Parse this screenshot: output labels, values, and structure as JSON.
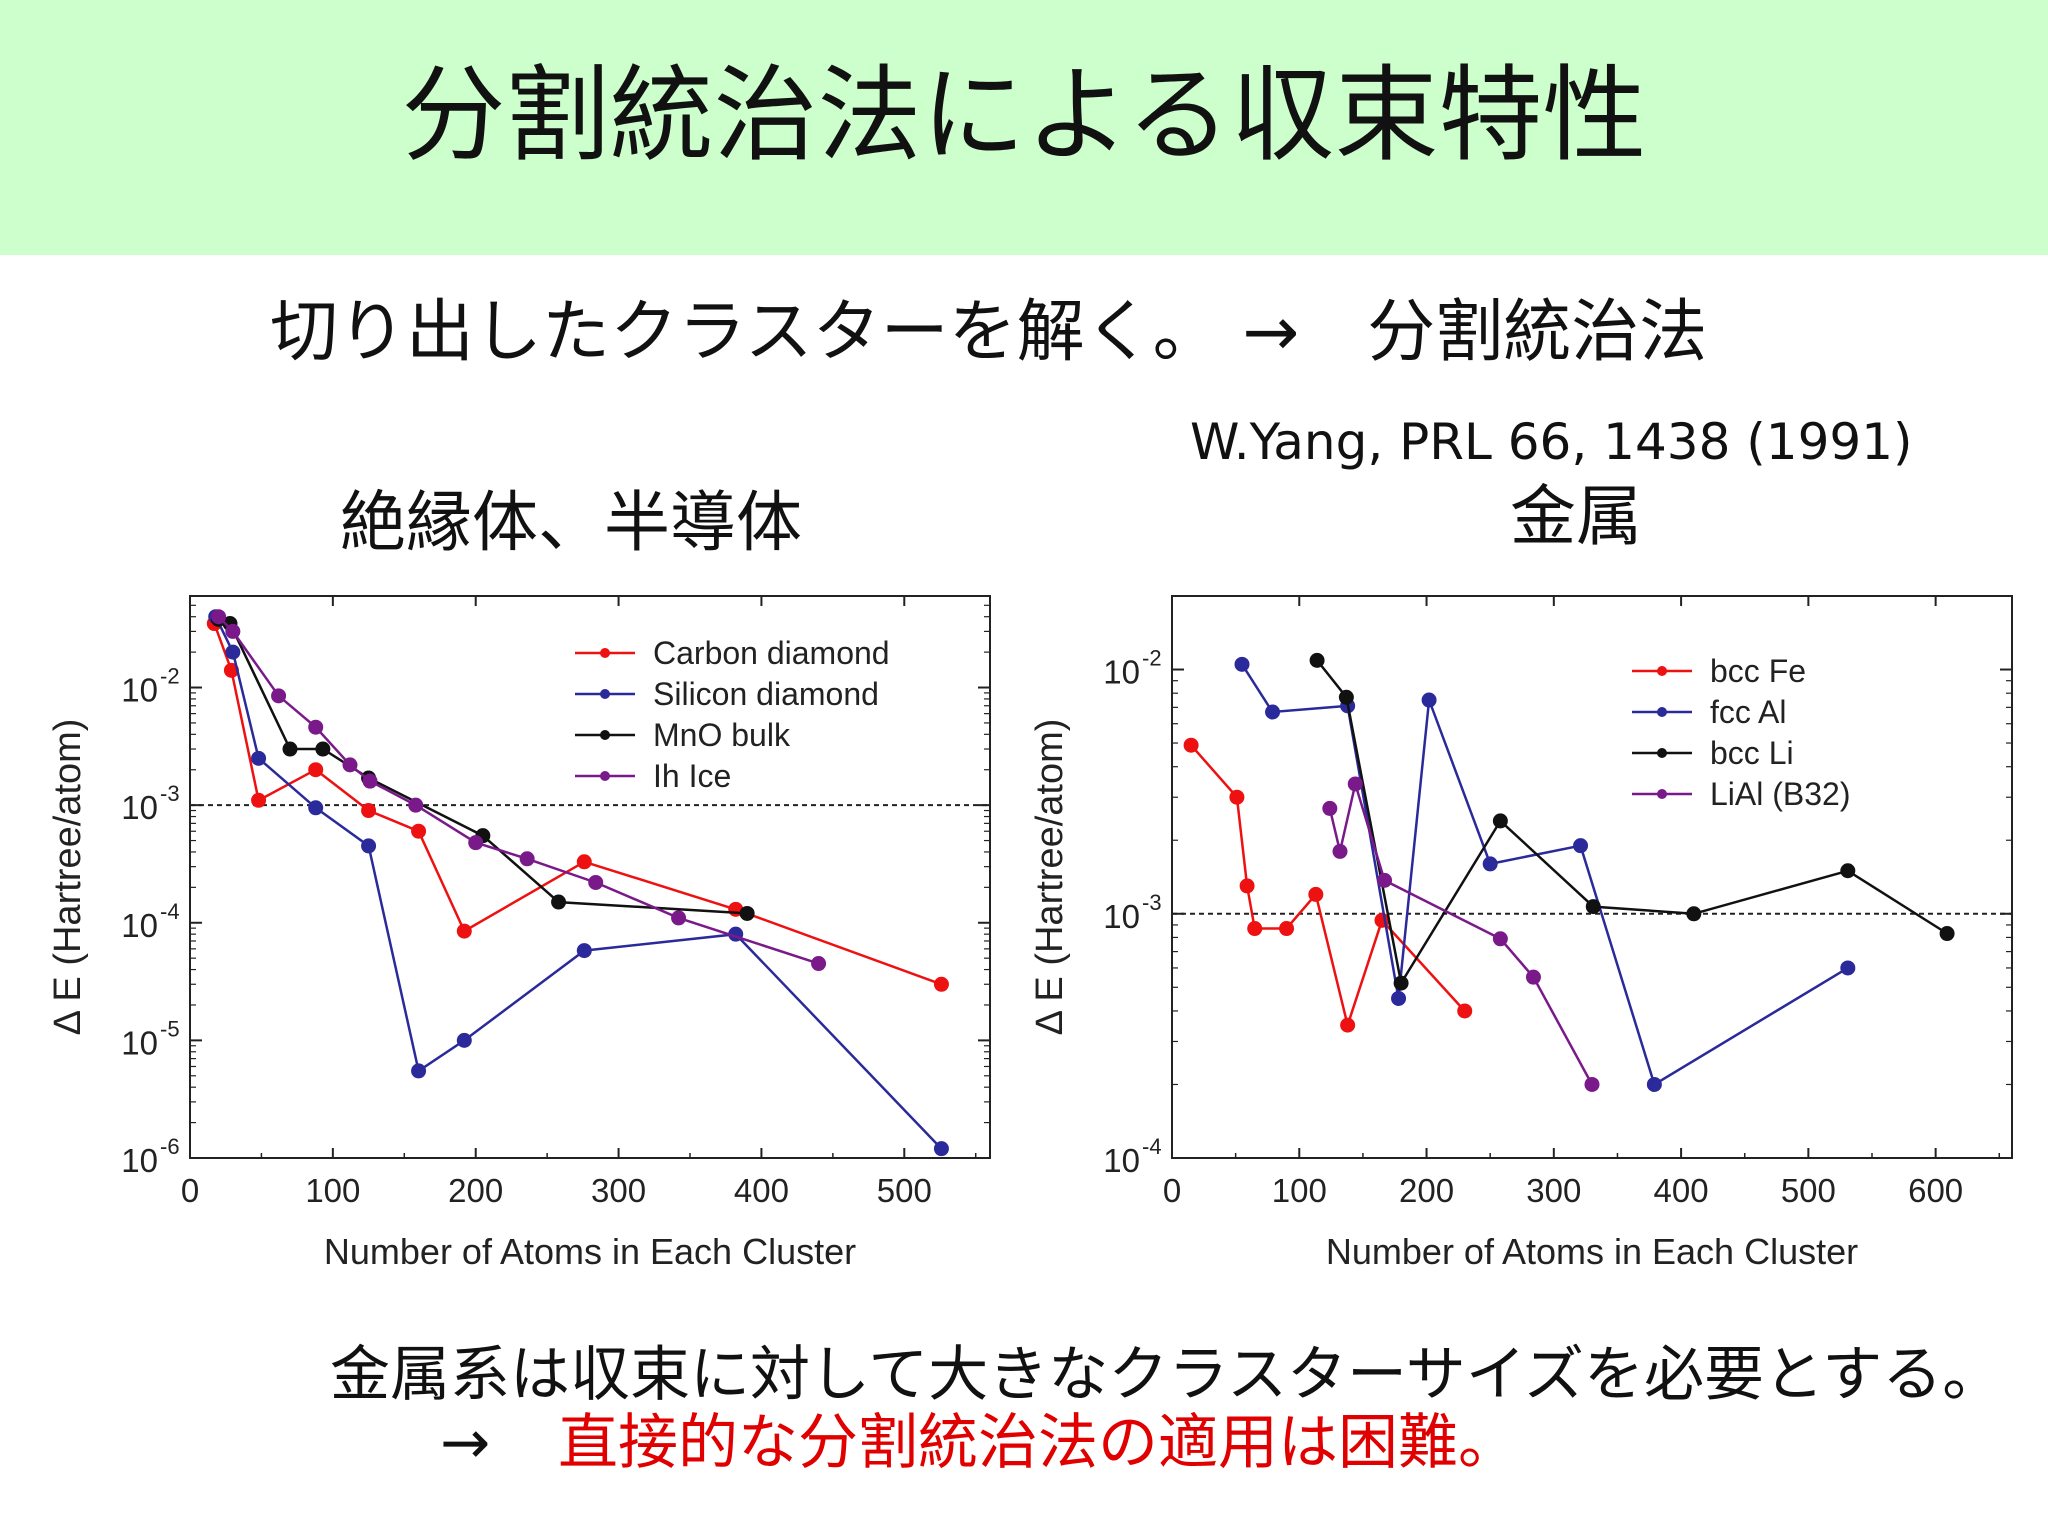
{
  "title": "分割統治法による収束特性",
  "subtitle": "切り出したクラスターを解く。 →　分割統治法",
  "citation": "W.Yang, PRL 66, 1438 (1991)",
  "left_heading": "絶縁体、半導体",
  "right_heading": "金属",
  "bottom": {
    "line1": "金属系は収束に対して大きなクラスターサイズを必要とする。",
    "arrow": "→",
    "line2": "直接的な分割統治法の適用は困難。"
  },
  "colors": {
    "red": "#ee1111",
    "blue": "#2a2a9a",
    "black": "#111111",
    "purple": "#7a1a8a",
    "title_bg": "#ccffcc",
    "highlight": "#e00000"
  },
  "chart_data": [
    {
      "type": "line",
      "xlabel": "Number of Atoms in Each Cluster",
      "ylabel": "Δ E (Hartree/atom)",
      "xlim": [
        0,
        560
      ],
      "ylim": [
        1e-06,
        0.06
      ],
      "yscale": "log",
      "xticks": [
        0,
        100,
        200,
        300,
        400,
        500
      ],
      "yticks": [
        {
          "value": 1e-06,
          "base": "10",
          "exp": "-6"
        },
        {
          "value": 1e-05,
          "base": "10",
          "exp": "-5"
        },
        {
          "value": 0.0001,
          "base": "10",
          "exp": "-4"
        },
        {
          "value": 0.001,
          "base": "10",
          "exp": "-3"
        },
        {
          "value": 0.01,
          "base": "10",
          "exp": "-2"
        }
      ],
      "reference_line": 0.001,
      "legend_position": "top-right",
      "series": [
        {
          "name": "Carbon diamond",
          "color": "#ee1111",
          "points": [
            [
              17,
              0.035
            ],
            [
              29,
              0.014
            ],
            [
              48,
              0.0011
            ],
            [
              88,
              0.002
            ],
            [
              125,
              0.0009
            ],
            [
              160,
              0.0006
            ],
            [
              192,
              8.5e-05
            ],
            [
              276,
              0.00033
            ],
            [
              382,
              0.00013
            ],
            [
              526,
              3e-05
            ]
          ]
        },
        {
          "name": "Silicon diamond",
          "color": "#2a2a9a",
          "points": [
            [
              18,
              0.04
            ],
            [
              30,
              0.02
            ],
            [
              48,
              0.0025
            ],
            [
              88,
              0.00095
            ],
            [
              125,
              0.00045
            ],
            [
              160,
              5.5e-06
            ],
            [
              192,
              1e-05
            ],
            [
              276,
              5.8e-05
            ],
            [
              382,
              8e-05
            ],
            [
              526,
              1.2e-06
            ]
          ]
        },
        {
          "name": "MnO bulk",
          "color": "#111111",
          "points": [
            [
              20,
              0.038
            ],
            [
              28,
              0.035
            ],
            [
              70,
              0.003
            ],
            [
              93,
              0.003
            ],
            [
              125,
              0.0017
            ],
            [
              205,
              0.00055
            ],
            [
              258,
              0.00015
            ],
            [
              390,
              0.00012
            ]
          ]
        },
        {
          "name": "Ih Ice",
          "color": "#7a1a8a",
          "points": [
            [
              20,
              0.04
            ],
            [
              30,
              0.03
            ],
            [
              62,
              0.0085
            ],
            [
              88,
              0.0046
            ],
            [
              112,
              0.0022
            ],
            [
              126,
              0.0016
            ],
            [
              158,
              0.001
            ],
            [
              200,
              0.00048
            ],
            [
              236,
              0.00035
            ],
            [
              284,
              0.00022
            ],
            [
              342,
              0.00011
            ],
            [
              440,
              4.5e-05
            ]
          ]
        }
      ]
    },
    {
      "type": "line",
      "xlabel": "Number of Atoms in Each Cluster",
      "ylabel": "Δ E (Hartree/atom)",
      "xlim": [
        0,
        660
      ],
      "ylim": [
        0.0001,
        0.02
      ],
      "yscale": "log",
      "xticks": [
        0,
        100,
        200,
        300,
        400,
        500,
        600
      ],
      "yticks": [
        {
          "value": 0.0001,
          "base": "10",
          "exp": "-4"
        },
        {
          "value": 0.001,
          "base": "10",
          "exp": "-3"
        },
        {
          "value": 0.01,
          "base": "10",
          "exp": "-2"
        }
      ],
      "reference_line": 0.001,
      "legend_position": "top-right",
      "series": [
        {
          "name": "bcc Fe",
          "color": "#ee1111",
          "points": [
            [
              15,
              0.0049
            ],
            [
              51,
              0.003
            ],
            [
              59,
              0.0013
            ],
            [
              65,
              0.00087
            ],
            [
              90,
              0.00087
            ],
            [
              113,
              0.0012
            ],
            [
              138,
              0.00035
            ],
            [
              165,
              0.00094
            ],
            [
              230,
              0.0004
            ]
          ]
        },
        {
          "name": "fcc Al",
          "color": "#2a2a9a",
          "points": [
            [
              55,
              0.0105
            ],
            [
              79,
              0.0067
            ],
            [
              138,
              0.0071
            ],
            [
              178,
              0.00045
            ],
            [
              202,
              0.0075
            ],
            [
              250,
              0.0016
            ],
            [
              321,
              0.0019
            ],
            [
              379,
              0.0002
            ],
            [
              531,
              0.0006
            ]
          ]
        },
        {
          "name": "bcc Li",
          "color": "#111111",
          "points": [
            [
              114,
              0.0109
            ],
            [
              137,
              0.0077
            ],
            [
              180,
              0.00052
            ],
            [
              258,
              0.0024
            ],
            [
              331,
              0.00107
            ],
            [
              410,
              0.001
            ],
            [
              531,
              0.0015
            ],
            [
              609,
              0.00083
            ]
          ]
        },
        {
          "name": "LiAl (B32)",
          "color": "#7a1a8a",
          "points": [
            [
              124,
              0.0027
            ],
            [
              132,
              0.0018
            ],
            [
              144,
              0.0034
            ],
            [
              167,
              0.00137
            ],
            [
              258,
              0.00079
            ],
            [
              284,
              0.00055
            ],
            [
              330,
              0.0002
            ]
          ]
        }
      ]
    }
  ]
}
